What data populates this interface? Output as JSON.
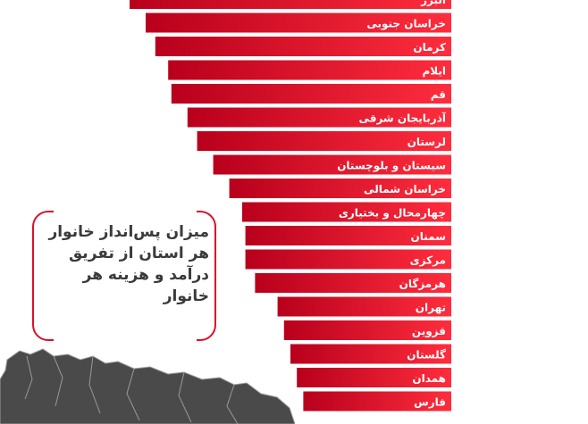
{
  "chart_data": {
    "type": "bar",
    "orientation": "horizontal",
    "title": "میزان پس‌انداز خانوار هر استان از تفریق درآمد و هزینه هر خانوار",
    "categories": [
      "البرز",
      "خراسان جنوبی",
      "کرمان",
      "ایلام",
      "قم",
      "آذربایجان شرقی",
      "لرستان",
      "سیستان و بلوچستان",
      "خراسان شمالی",
      "چهارمحال و بختیاری",
      "سمنان",
      "مرکزی",
      "هرمزگان",
      "تهران",
      "قزوین",
      "گلستان",
      "همدان",
      "فارس"
    ],
    "values": [
      100,
      95,
      92,
      88,
      87,
      82,
      79,
      74,
      69,
      65,
      64,
      64,
      61,
      54,
      52,
      50,
      48,
      46
    ],
    "value_note": "relative bar lengths only; no value labels visible",
    "bar_color_start": "#c4001f",
    "bar_color_end": "#ff3a45"
  },
  "callout": {
    "text": "میزان پس‌انداز خانوار هر استان از تفریق درآمد و هزینه هر خانوار"
  },
  "map": {
    "icon": "iran-map-icon",
    "fill": "#4a4a4a",
    "stroke": "#9a9a9a"
  }
}
